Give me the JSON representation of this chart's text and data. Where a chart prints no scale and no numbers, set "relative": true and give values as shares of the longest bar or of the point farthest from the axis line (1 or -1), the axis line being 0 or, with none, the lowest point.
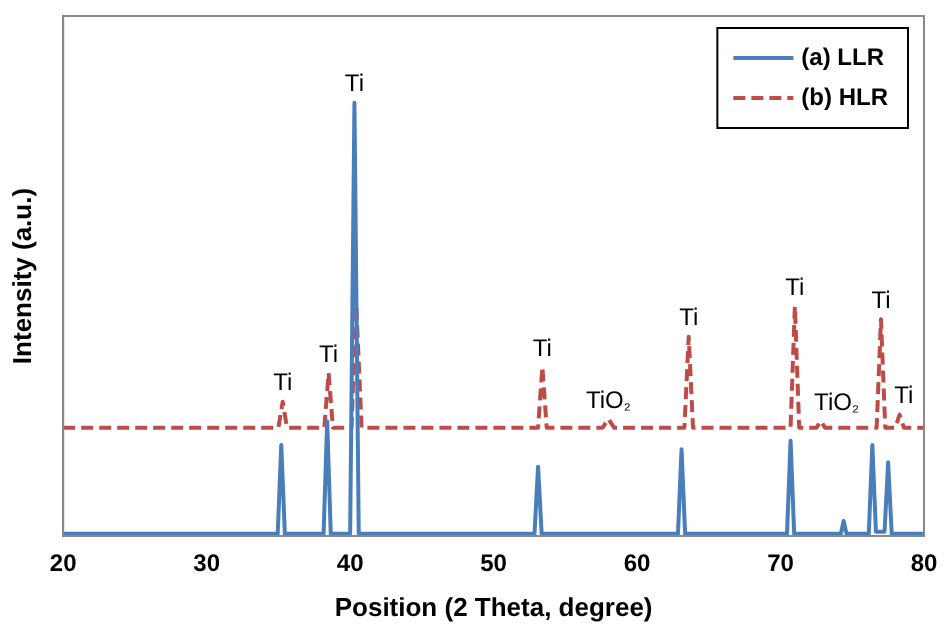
{
  "chart_data": {
    "type": "line",
    "xlabel": "Position (2 Theta, degree)",
    "ylabel": "Intensity (a.u.)",
    "relative": true,
    "xlim": [
      20,
      80
    ],
    "xticks": [
      20,
      30,
      40,
      50,
      60,
      70,
      80
    ],
    "grid": false,
    "legend": "top right",
    "marker": "none",
    "series": [
      {
        "name": "(a) LLR",
        "color": "#4a7ebb",
        "line_style": "solid",
        "x": [
          20,
          34.95,
          35.2,
          35.45,
          38.15,
          38.4,
          38.65,
          40.0,
          40.3,
          40.6,
          52.85,
          53.1,
          53.35,
          62.85,
          63.1,
          63.35,
          70.45,
          70.7,
          70.95,
          74.2,
          74.4,
          74.6,
          76.15,
          76.4,
          76.65,
          77.25,
          77.5,
          77.75,
          80
        ],
        "values": [
          0.005,
          0.005,
          0.21,
          0.005,
          0.005,
          0.265,
          0.005,
          0.005,
          1,
          0.005,
          0.005,
          0.16,
          0.005,
          0.005,
          0.2,
          0.005,
          0.005,
          0.22,
          0.005,
          0.005,
          0.035,
          0.005,
          0.005,
          0.21,
          0.01,
          0.01,
          0.17,
          0.005,
          0.005
        ]
      },
      {
        "name": "(b) HLR",
        "color": "#be4b48",
        "line_style": "dashed",
        "x": [
          20,
          35.0,
          35.3,
          35.6,
          38.2,
          38.5,
          38.8,
          40.1,
          40.4,
          40.8,
          53.1,
          53.4,
          53.7,
          57.6,
          58.0,
          58.4,
          63.3,
          63.6,
          63.9,
          70.7,
          71.0,
          71.3,
          72.5,
          72.8,
          73.1,
          76.7,
          77.0,
          77.3,
          78.0,
          78.3,
          78.6,
          80
        ],
        "values": [
          0.25,
          0.25,
          0.31,
          0.25,
          0.25,
          0.376,
          0.25,
          0.25,
          0.553,
          0.25,
          0.25,
          0.39,
          0.25,
          0.25,
          0.27,
          0.25,
          0.25,
          0.46,
          0.25,
          0.25,
          0.53,
          0.25,
          0.25,
          0.265,
          0.25,
          0.25,
          0.5,
          0.25,
          0.25,
          0.28,
          0.25,
          0.25
        ]
      }
    ],
    "annotations": [
      {
        "text": "Ti",
        "x": 35.3,
        "y": 0.31
      },
      {
        "text": "Ti",
        "x": 38.5,
        "y": 0.376
      },
      {
        "text": "Ti",
        "x": 40.3,
        "y": 1
      },
      {
        "text": "Ti",
        "x": 53.4,
        "y": 0.39
      },
      {
        "text": "TiO₂",
        "x": 58.0,
        "y": 0.27
      },
      {
        "text": "Ti",
        "x": 63.6,
        "y": 0.46
      },
      {
        "text": "Ti",
        "x": 71.0,
        "y": 0.53
      },
      {
        "text": "TiO₂",
        "x": 73.9,
        "y": 0.265
      },
      {
        "text": "Ti",
        "x": 77.0,
        "y": 0.5
      },
      {
        "text": "Ti",
        "x": 78.6,
        "y": 0.28
      }
    ]
  }
}
